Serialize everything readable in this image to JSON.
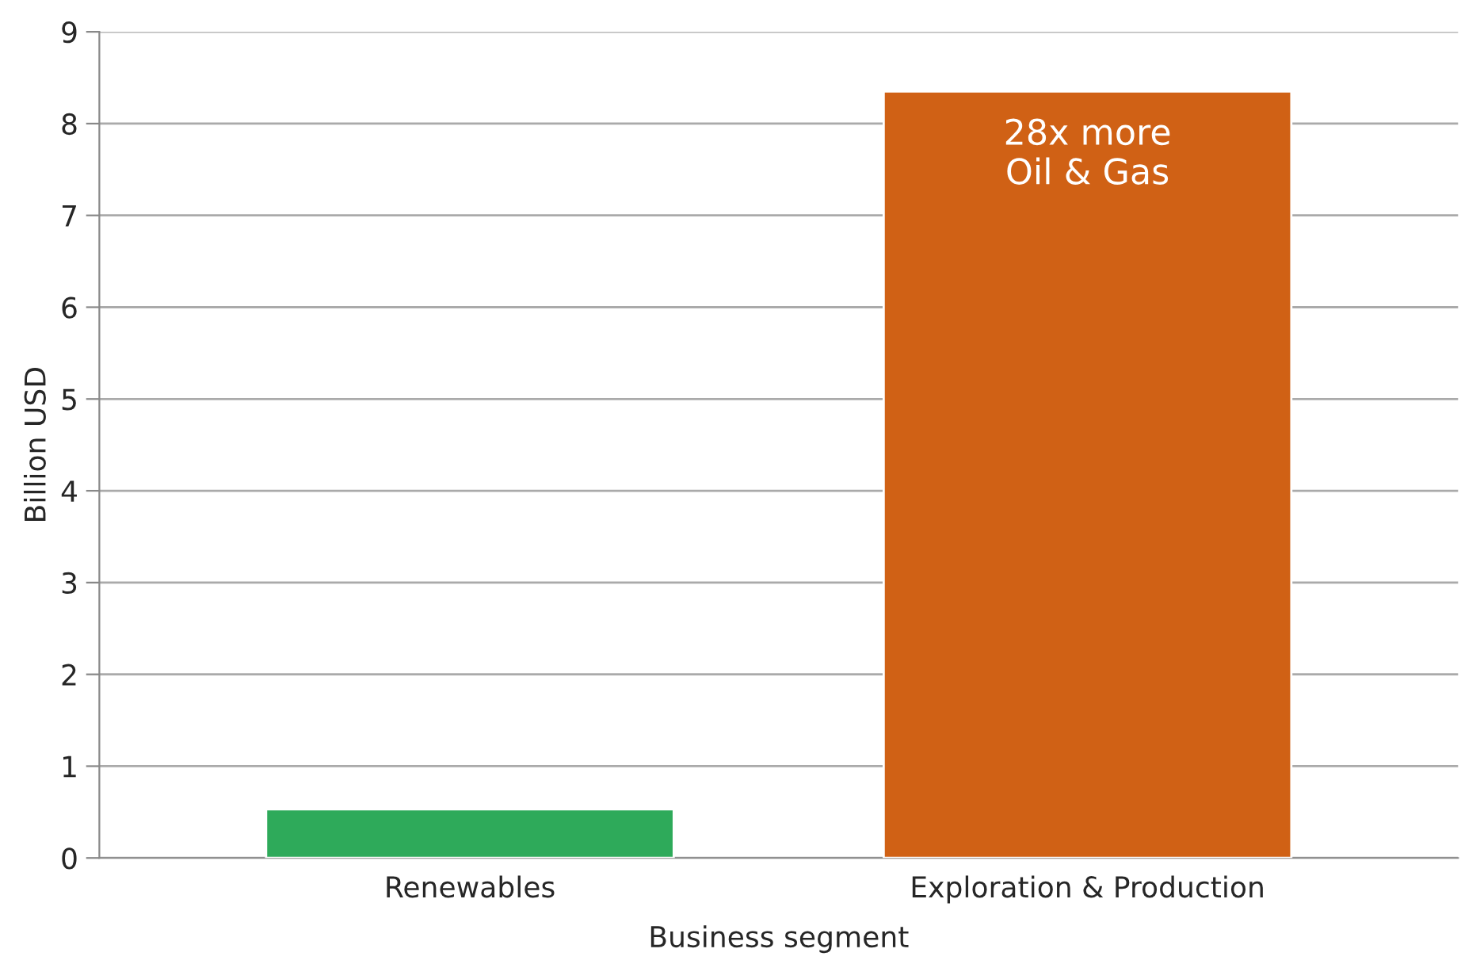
{
  "chart_data": {
    "type": "bar",
    "xlabel": "Business segment",
    "ylabel": "Billion USD",
    "categories": [
      "Renewables",
      "Exploration & Production"
    ],
    "values": [
      0.53,
      8.35
    ],
    "colors": [
      "#2eaa5a",
      "#d06115"
    ],
    "ylim": [
      0,
      9
    ],
    "yticks": [
      0,
      1,
      2,
      3,
      4,
      5,
      6,
      7,
      8,
      9
    ],
    "grid": "y",
    "legend": false,
    "annotations": [
      {
        "text": "28x more\nOil & Gas",
        "x": "Exploration & Production",
        "y": 8.35
      }
    ]
  }
}
